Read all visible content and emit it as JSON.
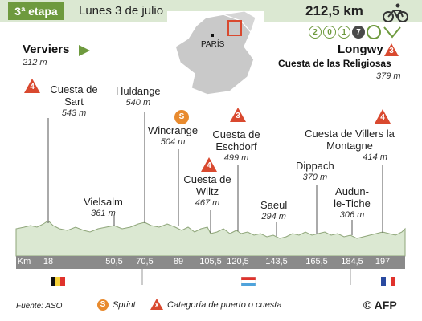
{
  "header": {
    "stage": "3ª etapa",
    "date": "Lunes 3 de julio",
    "distance": "212,5 km",
    "year_digits": [
      "2",
      "0",
      "1",
      "7"
    ]
  },
  "map": {
    "city": "PARÍS"
  },
  "start": {
    "name": "Verviers",
    "alt": "212 m"
  },
  "finish": {
    "name": "Longwy",
    "climb": "Cuesta de las Religiosas",
    "alt": "379 m",
    "category": "3"
  },
  "points": [
    {
      "name": "Cuesta de Sart",
      "alt": "543 m",
      "category": "4"
    },
    {
      "name": "Vielsalm",
      "alt": "361 m"
    },
    {
      "name": "Huldange",
      "alt": "540 m"
    },
    {
      "name": "Wincrange",
      "alt": "504 m",
      "sprint": "S"
    },
    {
      "name": "Cuesta de Wiltz",
      "alt": "467 m",
      "category": "4"
    },
    {
      "name": "Cuesta de Eschdorf",
      "alt": "499 m",
      "category": "3"
    },
    {
      "name": "Saeul",
      "alt": "294 m"
    },
    {
      "name": "Dippach",
      "alt": "370 m"
    },
    {
      "name": "Audun-le-Tiche",
      "alt": "306 m"
    },
    {
      "name": "Cuesta de Villers la Montagne",
      "alt": "414 m",
      "category": "4"
    }
  ],
  "axis": {
    "label": "Km",
    "ticks": [
      "18",
      "50,5",
      "70,5",
      "89",
      "105,5",
      "120,5",
      "143,5",
      "165,5",
      "184,5",
      "197"
    ]
  },
  "flags": [
    "Bélgica",
    "Luxemburgo",
    "Francia"
  ],
  "legend": {
    "source": "Fuente: ASO",
    "sprint_symbol": "S",
    "sprint": "Sprint",
    "category_symbol": "X",
    "category": "Categoría de puerto o cuesta",
    "credit": "© AFP"
  },
  "colors": {
    "green": "#6e9a3e",
    "orange": "#e88a2e",
    "red": "#d9492f",
    "terrain": "#dbe8d2"
  }
}
